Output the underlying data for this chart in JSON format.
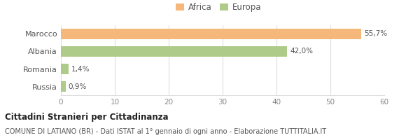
{
  "categories": [
    "Russia",
    "Romania",
    "Albania",
    "Marocco"
  ],
  "values": [
    0.9,
    1.4,
    42.0,
    55.7
  ],
  "colors": [
    "#AECB8A",
    "#AECB8A",
    "#AECB8A",
    "#F5B87A"
  ],
  "labels": [
    "0,9%",
    "1,4%",
    "42,0%",
    "55,7%"
  ],
  "legend": [
    {
      "label": "Africa",
      "color": "#F5B87A"
    },
    {
      "label": "Europa",
      "color": "#AECB8A"
    }
  ],
  "xlim": [
    0,
    60
  ],
  "xticks": [
    0,
    10,
    20,
    30,
    40,
    50,
    60
  ],
  "title_bold": "Cittadini Stranieri per Cittadinanza",
  "subtitle": "COMUNE DI LATIANO (BR) - Dati ISTAT al 1° gennaio di ogni anno - Elaborazione TUTTITALIA.IT",
  "bg_color": "#ffffff",
  "grid_color": "#dddddd"
}
